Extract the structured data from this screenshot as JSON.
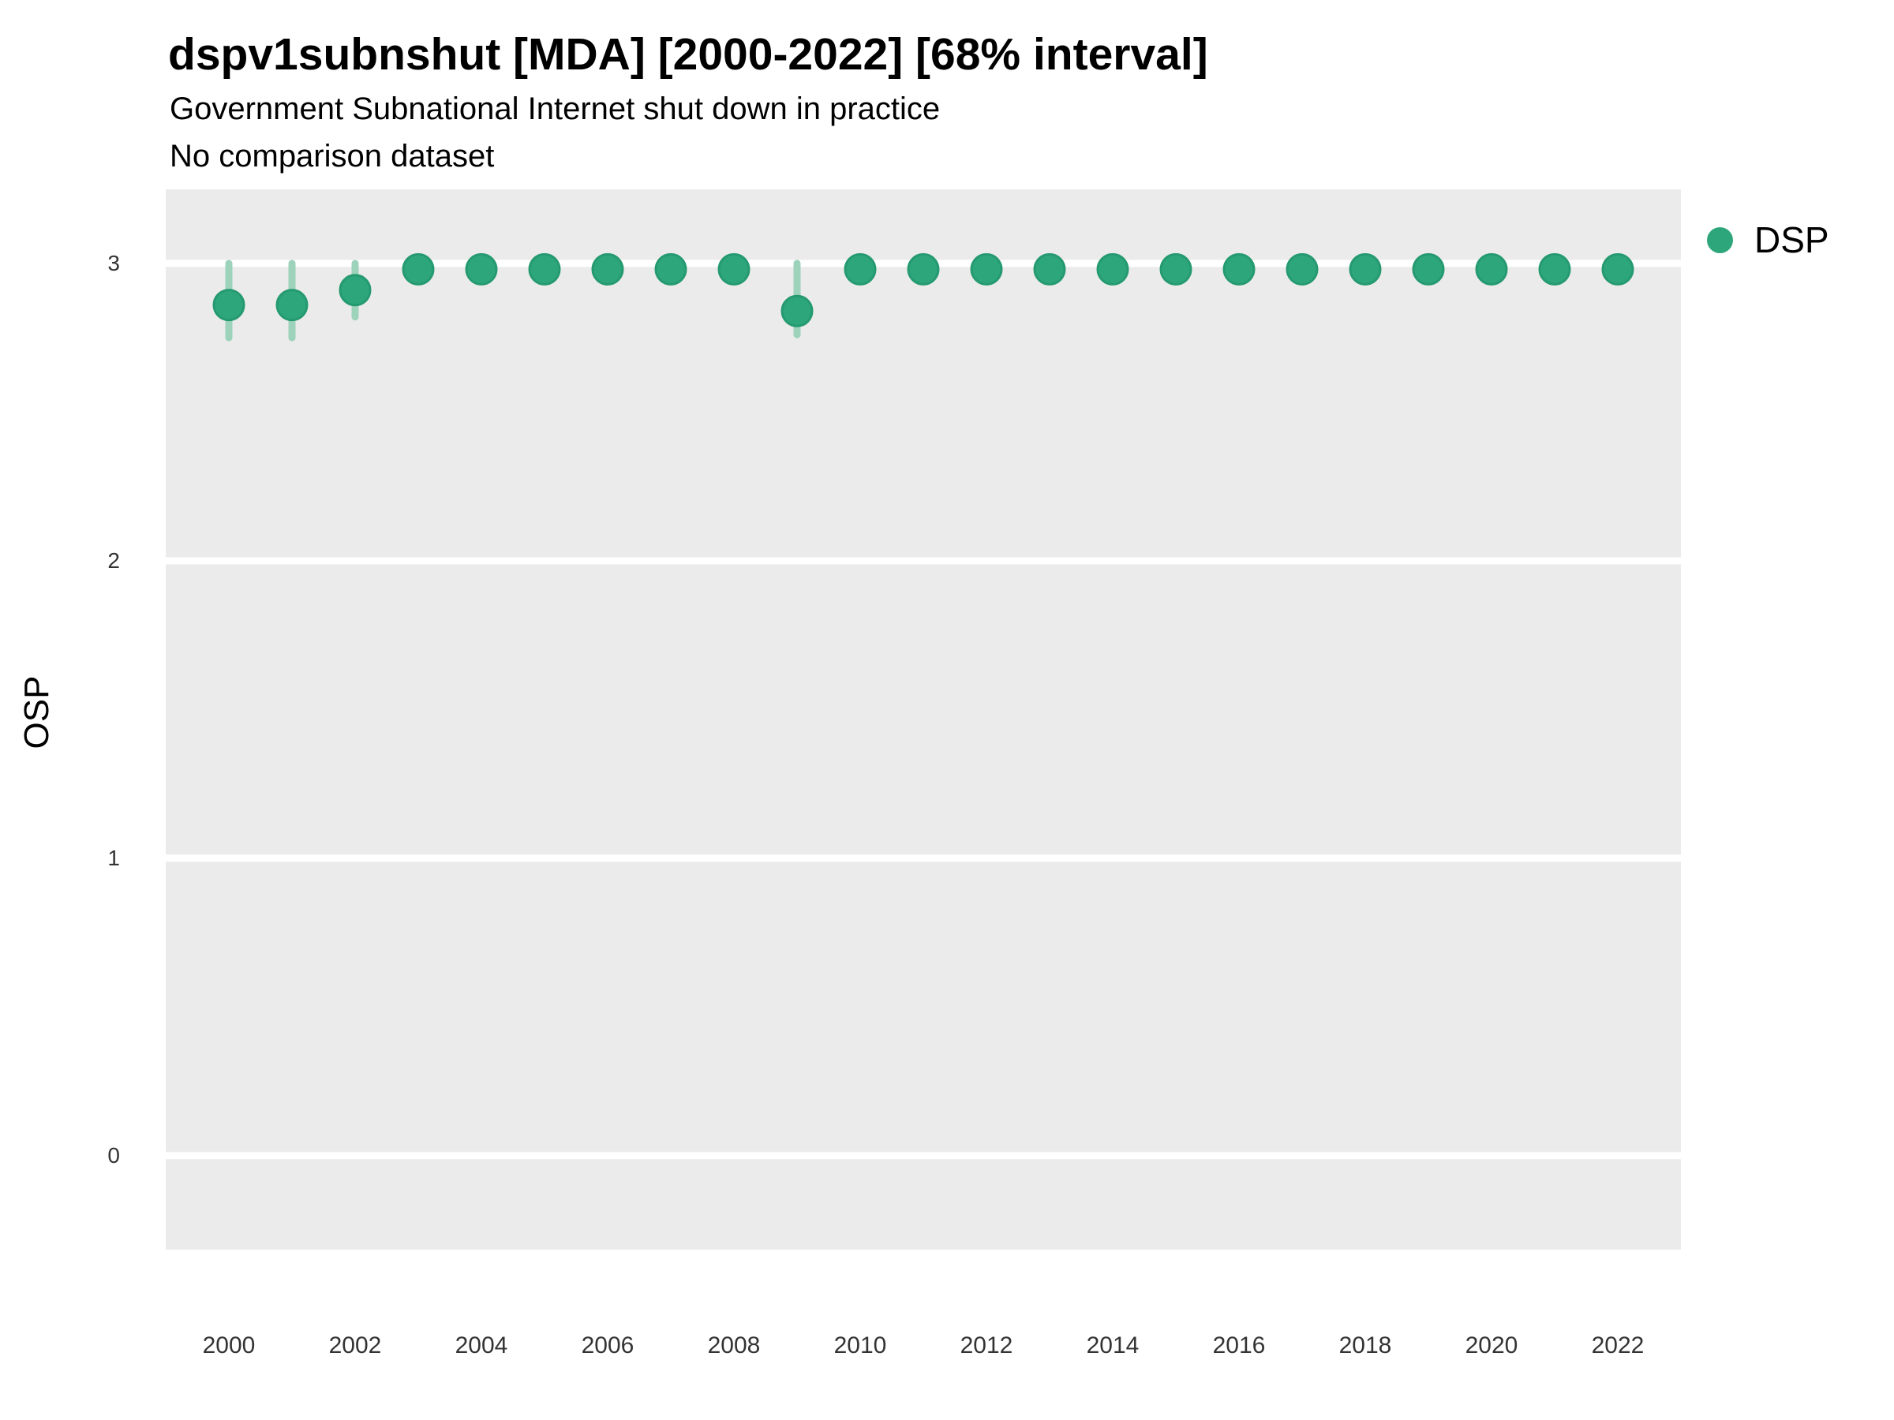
{
  "chart_data": {
    "type": "scatter",
    "title": "dspv1subnshut [MDA] [2000-2022] [68% interval]",
    "subtitle": "Government Subnational Internet shut down in practice",
    "note": "No comparison dataset",
    "xlabel": "",
    "ylabel": "OSP",
    "legend_position": "right",
    "grid": "major-horizontal-white-on-gray",
    "x": [
      2000,
      2001,
      2002,
      2003,
      2004,
      2005,
      2006,
      2007,
      2008,
      2009,
      2010,
      2011,
      2012,
      2013,
      2014,
      2015,
      2016,
      2017,
      2018,
      2019,
      2020,
      2021,
      2022
    ],
    "series": [
      {
        "name": "DSP",
        "variable": "dspv1subnshut",
        "country": "MDA",
        "interval": "68%",
        "estimates": [
          2.86,
          2.86,
          2.91,
          2.98,
          2.98,
          2.98,
          2.98,
          2.98,
          2.98,
          2.84,
          2.98,
          2.98,
          2.98,
          2.98,
          2.98,
          2.98,
          2.98,
          2.98,
          2.98,
          2.98,
          2.98,
          2.98,
          2.98
        ],
        "lower_68": [
          2.75,
          2.75,
          2.82,
          2.95,
          2.95,
          2.95,
          2.95,
          2.95,
          2.95,
          2.76,
          2.95,
          2.95,
          2.95,
          2.95,
          2.95,
          2.95,
          2.95,
          2.95,
          2.95,
          2.95,
          2.95,
          2.95,
          2.95
        ],
        "upper_68": [
          3.0,
          3.0,
          3.0,
          3.0,
          3.0,
          3.0,
          3.0,
          3.0,
          3.0,
          3.0,
          3.0,
          3.0,
          3.0,
          3.0,
          3.0,
          3.0,
          3.0,
          3.0,
          3.0,
          3.0,
          3.0,
          3.0,
          3.0
        ]
      }
    ],
    "xlim": [
      1999,
      2023
    ],
    "ylim": [
      -0.316,
      3.249
    ],
    "x_ticks": [
      2000,
      2002,
      2004,
      2006,
      2008,
      2010,
      2012,
      2014,
      2016,
      2018,
      2020,
      2022
    ],
    "y_ticks": [
      0,
      1,
      2,
      3
    ],
    "colors": {
      "point": "#2EA67C",
      "point_edge": "#259A71",
      "interval": "#9CD3BA",
      "panel_bg": "#EBEBEB",
      "gridline": "#FFFFFF",
      "tick_text": "#333333",
      "title_text": "#000000"
    }
  }
}
